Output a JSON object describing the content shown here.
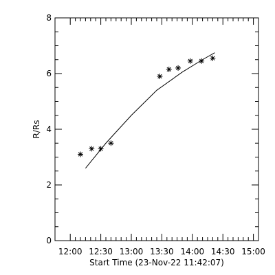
{
  "chart_data": {
    "type": "scatter",
    "title": "",
    "xlabel": "Start Time (23-Nov-22 11:42:07)",
    "ylabel": "R/Rs",
    "x_ticks": [
      "12:00",
      "12:30",
      "13:00",
      "13:30",
      "14:00",
      "14:30",
      "15:00"
    ],
    "x_tick_minutes": [
      720,
      750,
      780,
      810,
      840,
      870,
      900
    ],
    "xlim_minutes": [
      705,
      905
    ],
    "ylim": [
      0,
      8
    ],
    "y_ticks": [
      0,
      2,
      4,
      6,
      8
    ],
    "grid": false,
    "series": [
      {
        "kind": "points",
        "marker": "asterisk",
        "x": [
          "12:10",
          "12:21",
          "12:30",
          "12:40",
          "13:28",
          "13:37",
          "13:46",
          "13:58",
          "14:09",
          "14:20"
        ],
        "y": [
          3.1,
          3.3,
          3.3,
          3.5,
          5.9,
          6.15,
          6.2,
          6.45,
          6.45,
          6.55
        ]
      },
      {
        "kind": "fit",
        "x": [
          "12:15",
          "12:35",
          "13:00",
          "13:25",
          "13:50",
          "14:10",
          "14:22"
        ],
        "y": [
          2.6,
          3.5,
          4.5,
          5.4,
          6.05,
          6.5,
          6.75
        ]
      }
    ]
  }
}
